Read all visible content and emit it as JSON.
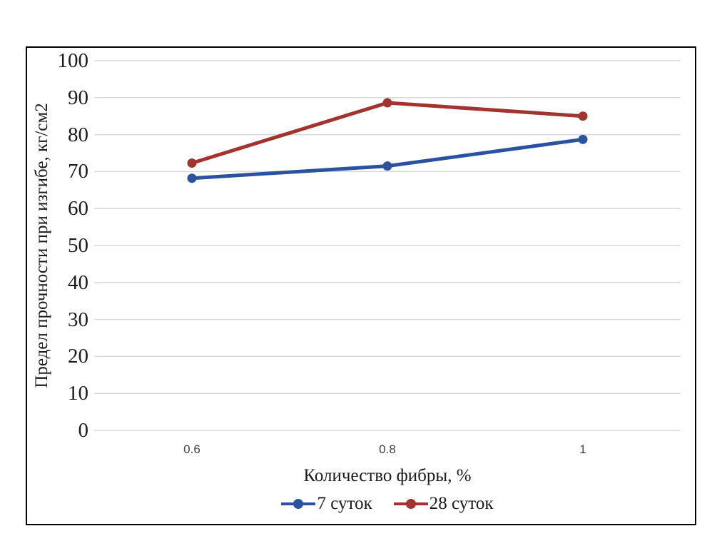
{
  "chart_data": {
    "type": "line",
    "categories": [
      "0.6",
      "0.8",
      "1"
    ],
    "series": [
      {
        "name": "7 суток",
        "color": "#2A52A0",
        "values": [
          68.2,
          71.5,
          78.7
        ]
      },
      {
        "name": "28 суток",
        "color": "#A3332F",
        "values": [
          72.3,
          88.6,
          85.0
        ]
      }
    ],
    "title": "",
    "xlabel": "Количество фибры, %",
    "ylabel": "Предел прочности при изгибе, кг/см2",
    "ylim": [
      0,
      100
    ],
    "ytick_step": 10,
    "grid": true,
    "gridline_color": "#D9D9D9",
    "axis_text_color": "#1a1a1a",
    "legend_position": "bottom",
    "marker": "circle",
    "frame_border_color": "#000000"
  }
}
